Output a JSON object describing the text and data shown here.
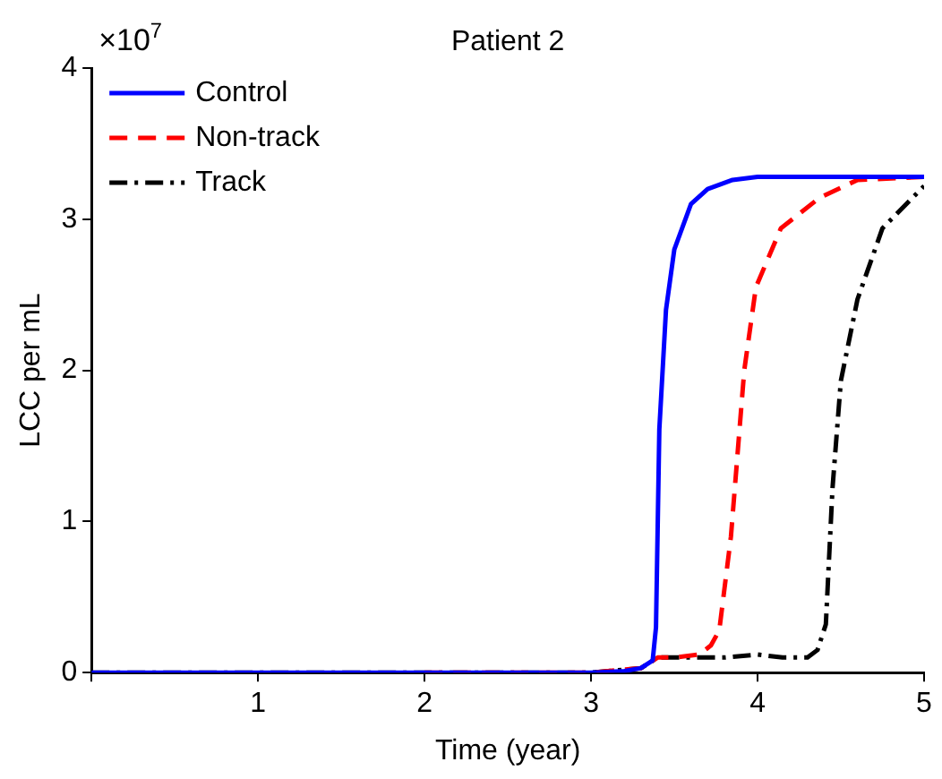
{
  "chart_data": {
    "type": "line",
    "title": "Patient 2",
    "xlabel": "Time (year)",
    "ylabel": "LCC per mL",
    "annotations": [
      "×10$^{7}$"
    ],
    "xlim": [
      0,
      5
    ],
    "ylim": [
      0,
      4
    ],
    "xticks": [
      {
        "value": 0,
        "label": null
      },
      1,
      2,
      3,
      4,
      5
    ],
    "yticks": [
      0,
      1,
      2,
      3,
      4
    ],
    "grid": false,
    "legend": "top left",
    "marker": "none",
    "series": [
      {
        "name": "Control",
        "color": "#0000ff",
        "line_style": "solid",
        "x": [
          0,
          1,
          2,
          3,
          3.2,
          3.3,
          3.37,
          3.39,
          3.41,
          3.45,
          3.5,
          3.6,
          3.7,
          3.85,
          4,
          4.3,
          4.6,
          5
        ],
        "values": [
          0,
          0,
          0,
          0,
          0.01,
          0.03,
          0.08,
          0.3,
          1.61,
          2.4,
          2.8,
          3.1,
          3.2,
          3.26,
          3.28,
          3.28,
          3.28,
          3.28
        ]
      },
      {
        "name": "Non-track",
        "color": "#ff0000",
        "line_style": "dashed",
        "x": [
          2,
          3,
          3.3,
          3.4,
          3.5,
          3.65,
          3.72,
          3.77,
          3.84,
          3.92,
          3.99,
          4.14,
          4.37,
          4.6,
          5
        ],
        "values": [
          0,
          0,
          0.03,
          0.1,
          0.1,
          0.12,
          0.18,
          0.28,
          0.9,
          2.0,
          2.55,
          2.94,
          3.14,
          3.26,
          3.28
        ]
      },
      {
        "name": "Track",
        "color": "#000000",
        "line_style": "dashdot",
        "x": [
          0,
          1,
          2,
          3,
          3.3,
          3.4,
          3.6,
          3.8,
          4.0,
          4.15,
          4.3,
          4.36,
          4.41,
          4.45,
          4.5,
          4.6,
          4.75,
          5
        ],
        "values": [
          0,
          0,
          0,
          0,
          0.03,
          0.1,
          0.1,
          0.1,
          0.12,
          0.1,
          0.1,
          0.15,
          0.32,
          1.22,
          1.93,
          2.47,
          2.94,
          3.22
        ]
      }
    ]
  }
}
